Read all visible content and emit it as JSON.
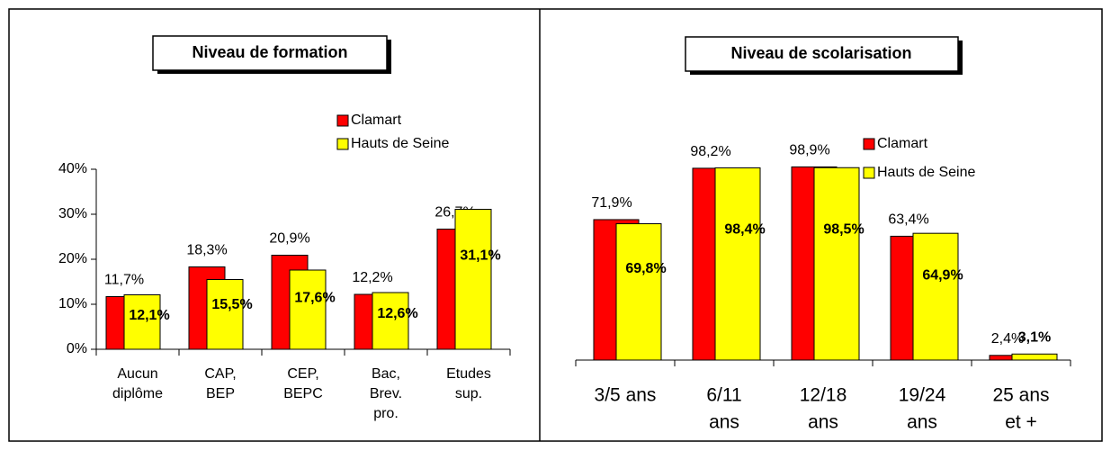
{
  "chart_data": [
    {
      "type": "bar",
      "title": "Niveau de formation",
      "categories": [
        [
          "Aucun",
          "diplôme"
        ],
        [
          "CAP,",
          "BEP"
        ],
        [
          "CEP,",
          "BEPC"
        ],
        [
          "Bac,",
          "Brev.",
          "pro."
        ],
        [
          "Etudes",
          "sup."
        ]
      ],
      "series": [
        {
          "name": "Clamart",
          "color": "#ff0000",
          "values": [
            11.7,
            18.3,
            20.9,
            12.2,
            26.7
          ],
          "value_labels": [
            "11,7%",
            "18,3%",
            "20,9%",
            "12,2%",
            "26,7%"
          ]
        },
        {
          "name": "Hauts de Seine",
          "color": "#ffff00",
          "values": [
            12.1,
            15.5,
            17.6,
            12.6,
            31.1
          ],
          "value_labels": [
            "12,1%",
            "15,5%",
            "17,6%",
            "12,6%",
            "31,1%"
          ]
        }
      ],
      "ylim": [
        0,
        40
      ],
      "yticks": [
        {
          "value": 0,
          "label": "0%"
        },
        {
          "value": 10,
          "label": "10%"
        },
        {
          "value": 20,
          "label": "20%"
        },
        {
          "value": 30,
          "label": "30%"
        },
        {
          "value": 40,
          "label": "40%"
        }
      ]
    },
    {
      "type": "bar",
      "title": "Niveau de scolarisation",
      "categories": [
        [
          "3/5 ans"
        ],
        [
          "6/11",
          "ans"
        ],
        [
          "12/18",
          "ans"
        ],
        [
          "19/24",
          "ans"
        ],
        [
          "25 ans",
          "et +"
        ]
      ],
      "series": [
        {
          "name": "Clamart",
          "color": "#ff0000",
          "values": [
            71.9,
            98.2,
            98.9,
            63.4,
            2.4
          ],
          "value_labels": [
            "71,9%",
            "98,2%",
            "98,9%",
            "63,4%",
            "2,4%"
          ]
        },
        {
          "name": "Hauts de Seine",
          "color": "#ffff00",
          "values": [
            69.8,
            98.4,
            98.5,
            64.9,
            3.1
          ],
          "value_labels": [
            "69,8%",
            "98,4%",
            "98,5%",
            "64,9%",
            "3,1%"
          ]
        }
      ],
      "ylim": [
        0,
        100
      ]
    }
  ]
}
